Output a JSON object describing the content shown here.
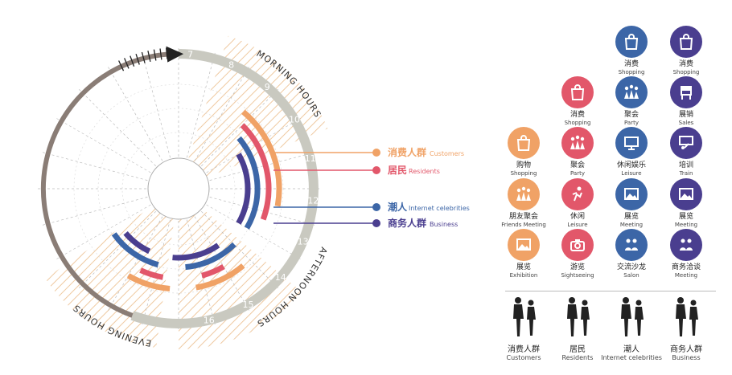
{
  "diagram": {
    "hours": [
      "7",
      "8",
      "9",
      "10",
      "11",
      "12",
      "13",
      "14",
      "15",
      "16"
    ],
    "period_labels": {
      "morning": "MORNING HOURS",
      "afternoon": "AFTERNOON HOURS",
      "evening": "EVENING HOURS"
    },
    "legend": [
      {
        "cn": "消费人群",
        "en": "Customers",
        "color": "#F0A266"
      },
      {
        "cn": "居民",
        "en": "Residents",
        "color": "#E2576A"
      },
      {
        "cn": "潮人",
        "en": "Internet celebrities",
        "color": "#3C66A7"
      },
      {
        "cn": "商务人群",
        "en": "Business",
        "color": "#4A3E8F"
      }
    ],
    "colors": {
      "ring_gray": "#C9C9C0",
      "ring_brown": "#8A7D76",
      "hatch": "#EFC9A0"
    }
  },
  "icons": [
    {
      "cn": "消费",
      "en": "Shopping",
      "color": "#3C66A7",
      "icon": "bag-icon"
    },
    {
      "cn": "消费",
      "en": "Shopping",
      "color": "#4A3E8F",
      "icon": "bag-icon"
    },
    {
      "cn": "消费",
      "en": "Shopping",
      "color": "#E2576A",
      "icon": "bag-icon"
    },
    {
      "cn": "聚会",
      "en": "Party",
      "color": "#3C66A7",
      "icon": "party-icon"
    },
    {
      "cn": "展销",
      "en": "Sales",
      "color": "#4A3E8F",
      "icon": "kiosk-icon"
    },
    {
      "cn": "购物",
      "en": "Shopping",
      "color": "#F0A266",
      "icon": "bag-icon"
    },
    {
      "cn": "聚会",
      "en": "Party",
      "color": "#E2576A",
      "icon": "party-icon"
    },
    {
      "cn": "休闲娱乐",
      "en": "Leisure",
      "color": "#3C66A7",
      "icon": "film-icon"
    },
    {
      "cn": "培训",
      "en": "Train",
      "color": "#4A3E8F",
      "icon": "board-icon"
    },
    {
      "cn": "朋友聚会",
      "en": "Friends Meeting",
      "color": "#F0A266",
      "icon": "party-icon"
    },
    {
      "cn": "休闲",
      "en": "Leisure",
      "color": "#E2576A",
      "icon": "leisure-icon"
    },
    {
      "cn": "展览",
      "en": "Meeting",
      "color": "#3C66A7",
      "icon": "picture-icon"
    },
    {
      "cn": "展览",
      "en": "Meeting",
      "color": "#4A3E8F",
      "icon": "picture-icon"
    },
    {
      "cn": "展览",
      "en": "Exhibition",
      "color": "#F0A266",
      "icon": "picture-icon"
    },
    {
      "cn": "游览",
      "en": "Sightseeing",
      "color": "#E2576A",
      "icon": "camera-icon"
    },
    {
      "cn": "交流沙龙",
      "en": "Salon",
      "color": "#3C66A7",
      "icon": "salon-icon"
    },
    {
      "cn": "商务洽谈",
      "en": "Meeting",
      "color": "#4A3E8F",
      "icon": "salon-icon"
    }
  ],
  "people": [
    {
      "cn": "消费人群",
      "en": "Customers"
    },
    {
      "cn": "居民",
      "en": "Residents"
    },
    {
      "cn": "潮人",
      "en": "Internet celebrities"
    },
    {
      "cn": "商务人群",
      "en": "Business"
    }
  ]
}
